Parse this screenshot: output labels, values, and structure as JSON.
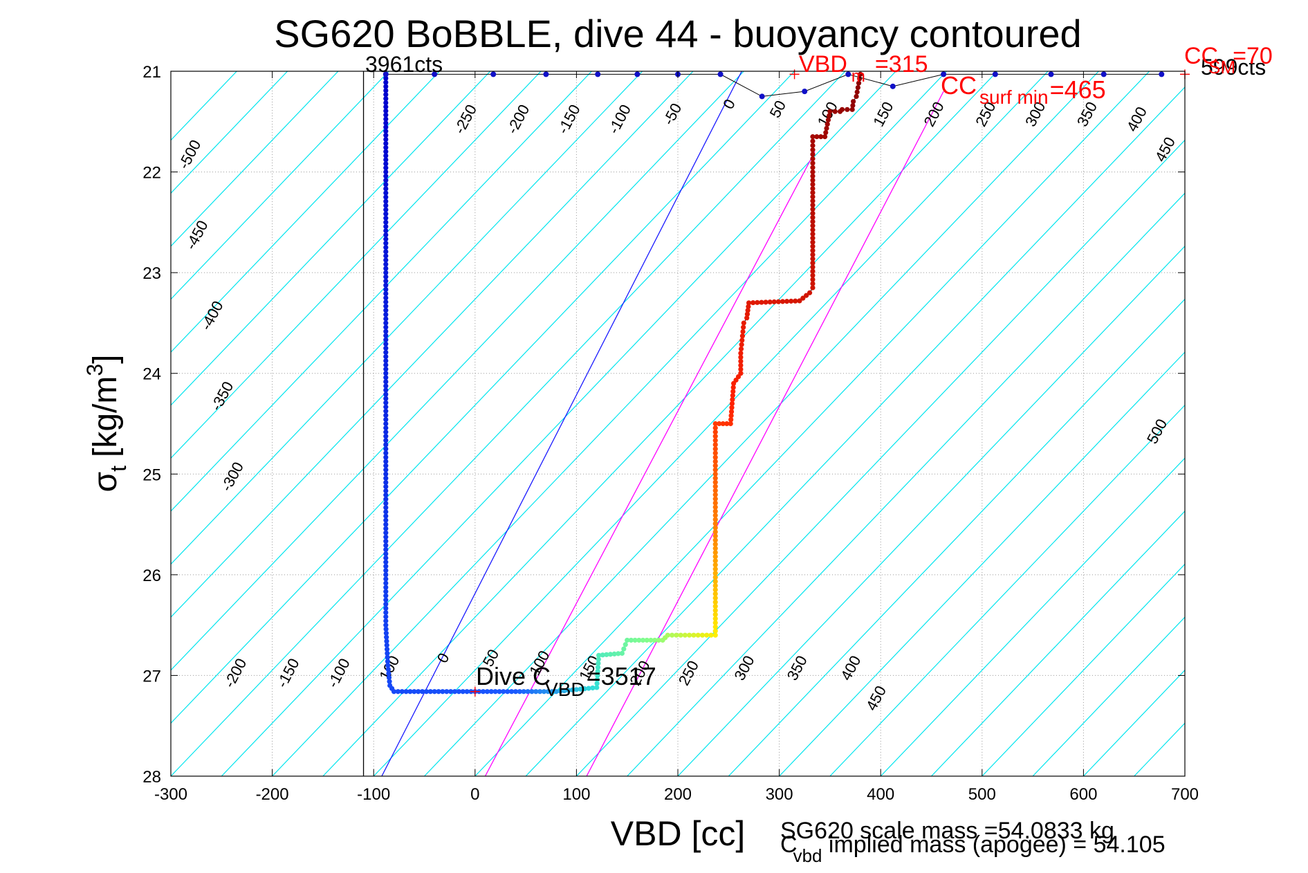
{
  "chart_data": {
    "type": "scatter",
    "title": "SG620 BoBBLE, dive 44 - buoyancy contoured",
    "xlabel": "VBD [cc]",
    "ylabel": {
      "main": "σ",
      "sub": "t",
      "unit": "[kg/m",
      "sup": "3",
      "close": "]"
    },
    "xlim": [
      -300,
      700
    ],
    "ylim": [
      21,
      28
    ],
    "y_reversed": true,
    "grid": true,
    "xticks": [
      -300,
      -200,
      -100,
      0,
      100,
      200,
      300,
      400,
      500,
      600,
      700
    ],
    "yticks": [
      21,
      22,
      23,
      24,
      25,
      26,
      27,
      28
    ],
    "colors": {
      "contour": "#00e5ee",
      "pump_line": "#1a1aff",
      "magenta_lines": "#ff00ff",
      "dive_points": "#1010c8",
      "climb_points": "#a00000",
      "annotation_red": "#ff0000",
      "grid": "#999999",
      "vertical_line": "#000000"
    },
    "contour_slope_cc_per_sigma": 95,
    "contour_levels": [
      -500,
      -450,
      -400,
      -350,
      -300,
      -250,
      -200,
      -150,
      -100,
      -50,
      0,
      50,
      100,
      150,
      200,
      250,
      300,
      350,
      400,
      450,
      500
    ],
    "contour_labels": [
      {
        "text": "-500",
        "x": -277,
        "y": 21.85
      },
      {
        "text": "-450",
        "x": -270,
        "y": 22.65
      },
      {
        "text": "-400",
        "x": -255,
        "y": 23.45
      },
      {
        "text": "-350",
        "x": -245,
        "y": 24.25
      },
      {
        "text": "-300",
        "x": -235,
        "y": 25.05
      },
      {
        "text": "-250",
        "x": -5,
        "y": 21.5
      },
      {
        "text": "-200",
        "x": 47,
        "y": 21.5
      },
      {
        "text": "-150",
        "x": 97,
        "y": 21.5
      },
      {
        "text": "-100",
        "x": 147,
        "y": 21.5
      },
      {
        "text": "-50",
        "x": 199,
        "y": 21.45
      },
      {
        "text": "0",
        "x": 255,
        "y": 21.35
      },
      {
        "text": "50",
        "x": 303,
        "y": 21.4
      },
      {
        "text": "100",
        "x": 352,
        "y": 21.45
      },
      {
        "text": "150",
        "x": 407,
        "y": 21.45
      },
      {
        "text": "200",
        "x": 457,
        "y": 21.45
      },
      {
        "text": "250",
        "x": 508,
        "y": 21.45
      },
      {
        "text": "300",
        "x": 557,
        "y": 21.45
      },
      {
        "text": "350",
        "x": 608,
        "y": 21.45
      },
      {
        "text": "400",
        "x": 657,
        "y": 21.5
      },
      {
        "text": "450",
        "x": 685,
        "y": 21.8
      },
      {
        "text": "500",
        "x": 677,
        "y": 24.6
      },
      {
        "text": "-200",
        "x": -232,
        "y": 27.0
      },
      {
        "text": "-150",
        "x": -180,
        "y": 27.0
      },
      {
        "text": "-100",
        "x": -130,
        "y": 27.0
      },
      {
        "text": "100",
        "x": -80,
        "y": 26.95
      },
      {
        "text": "0",
        "x": -27,
        "y": 26.85
      },
      {
        "text": "50",
        "x": 20,
        "y": 26.85
      },
      {
        "text": "100",
        "x": 68,
        "y": 26.9
      },
      {
        "text": "150",
        "x": 117,
        "y": 26.95
      },
      {
        "text": "200",
        "x": 167,
        "y": 27.0
      },
      {
        "text": "250",
        "x": 215,
        "y": 27.0
      },
      {
        "text": "300",
        "x": 270,
        "y": 26.95
      },
      {
        "text": "350",
        "x": 322,
        "y": 26.95
      },
      {
        "text": "400",
        "x": 375,
        "y": 26.95
      },
      {
        "text": "450",
        "x": 400,
        "y": 27.25
      }
    ],
    "reference_lines": [
      {
        "name": "pump",
        "color_key": "pump_line",
        "from": [
          -92,
          28
        ],
        "to": [
          263,
          21
        ]
      },
      {
        "name": "m1",
        "color_key": "magenta_lines",
        "from": [
          10,
          28
        ],
        "to": [
          335,
          21.8
        ]
      },
      {
        "name": "m2",
        "color_key": "magenta_lines",
        "from": [
          110,
          28
        ],
        "to": [
          462,
          21.2
        ]
      }
    ],
    "vertical_line_x": -110,
    "dive_path": [
      [
        -88,
        21.03
      ],
      [
        -88,
        22.0
      ],
      [
        -88,
        23.0
      ],
      [
        -88,
        24.0
      ],
      [
        -88,
        25.0
      ],
      [
        -88,
        26.0
      ],
      [
        -88,
        26.5
      ],
      [
        -86,
        26.9
      ],
      [
        -84,
        27.1
      ],
      [
        -80,
        27.16
      ],
      [
        0,
        27.16
      ],
      [
        80,
        27.16
      ],
      [
        120,
        27.12
      ],
      [
        122,
        26.8
      ],
      [
        145,
        26.78
      ],
      [
        150,
        26.65
      ],
      [
        185,
        26.65
      ],
      [
        190,
        26.6
      ],
      [
        237,
        26.6
      ],
      [
        237,
        25.0
      ],
      [
        237,
        24.5
      ],
      [
        252,
        24.5
      ],
      [
        255,
        24.1
      ],
      [
        262,
        24.0
      ],
      [
        262,
        23.8
      ],
      [
        265,
        23.5
      ],
      [
        268,
        23.45
      ],
      [
        270,
        23.3
      ],
      [
        320,
        23.28
      ],
      [
        330,
        23.2
      ],
      [
        333,
        23.15
      ],
      [
        333,
        22.0
      ],
      [
        333,
        21.65
      ],
      [
        345,
        21.65
      ],
      [
        350,
        21.4
      ],
      [
        360,
        21.4
      ],
      [
        362,
        21.38
      ],
      [
        372,
        21.38
      ],
      [
        373,
        21.3
      ],
      [
        376,
        21.25
      ],
      [
        380,
        21.03
      ]
    ],
    "dive_points_color_stops": [
      {
        "pos": 0.0,
        "color": "#0000cc"
      },
      {
        "pos": 0.45,
        "color": "#1a58ff"
      },
      {
        "pos": 0.5,
        "color": "#33e0d8"
      },
      {
        "pos": 0.56,
        "color": "#88ff88"
      },
      {
        "pos": 0.6,
        "color": "#ffee00"
      },
      {
        "pos": 0.66,
        "color": "#ff8800"
      },
      {
        "pos": 0.75,
        "color": "#ff2200"
      },
      {
        "pos": 1.0,
        "color": "#8b0000"
      }
    ],
    "surface_points": [
      [
        -88,
        21.03
      ],
      [
        -40,
        21.03
      ],
      [
        18,
        21.03
      ],
      [
        70,
        21.03
      ],
      [
        121,
        21.03
      ],
      [
        160,
        21.03
      ],
      [
        200,
        21.03
      ],
      [
        242,
        21.03
      ],
      [
        283,
        21.25
      ],
      [
        325,
        21.2
      ],
      [
        368,
        21.03
      ],
      [
        412,
        21.15
      ],
      [
        462,
        21.03
      ],
      [
        513,
        21.03
      ],
      [
        568,
        21.03
      ],
      [
        620,
        21.03
      ],
      [
        677,
        21.03
      ]
    ],
    "annotations": {
      "start_counts": "3961cts",
      "end_counts": "599cts",
      "vbd_main": "VBD",
      "vbd_sub": "m",
      "vbd_val": "=315",
      "cc_surf_main": "CC",
      "cc_surf_sub": "surf min",
      "cc_surf_val": "=465",
      "cc_sm_main": "CC",
      "cc_sm_sub": "SM",
      "cc_sm_val": "=70",
      "dive_main": "Dive C",
      "dive_sub": "VBD",
      "dive_val": "=3517",
      "mass_line1": "SG620 scale mass =54.0833 kg",
      "mass_main": "C",
      "mass_sub": "vbd",
      "mass_rest": " implied mass (apogee) = 54.105"
    },
    "annotation_markers": [
      {
        "x": 315,
        "y": 21.03,
        "color_key": "annotation_red"
      },
      {
        "x": 700,
        "y": 21.03,
        "color_key": "annotation_red"
      },
      {
        "x": 0,
        "y": 27.16,
        "color_key": "annotation_red"
      }
    ]
  }
}
